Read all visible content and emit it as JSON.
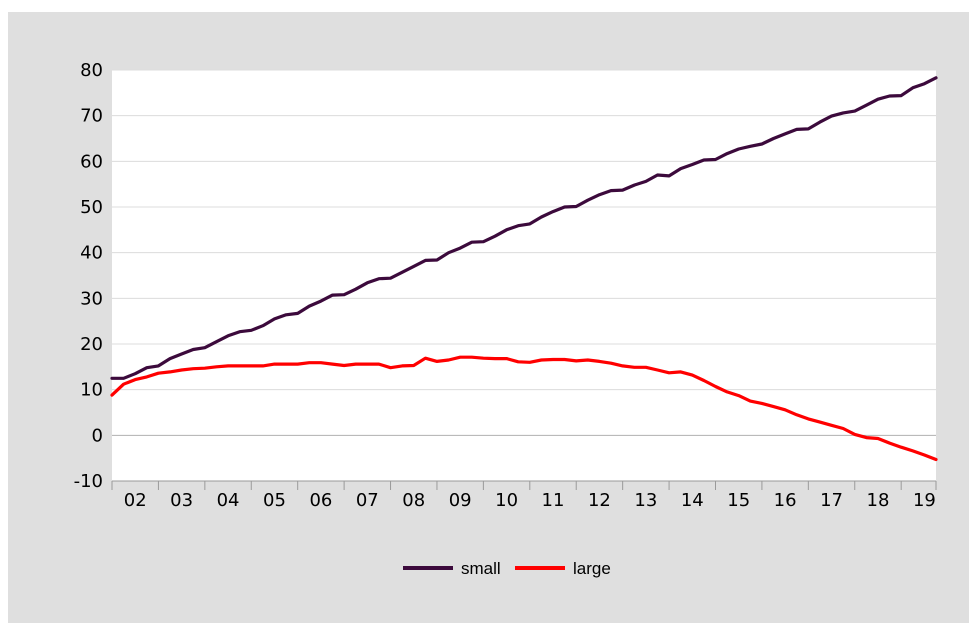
{
  "chart_data": {
    "type": "line",
    "title": "",
    "xlabel": "",
    "ylabel": "",
    "ylim": [
      -10,
      80
    ],
    "yticks": [
      -10,
      0,
      10,
      20,
      30,
      40,
      50,
      60,
      70,
      80
    ],
    "xlim": [
      2002,
      2019.75
    ],
    "xtick_labels": [
      "02",
      "03",
      "04",
      "05",
      "06",
      "07",
      "08",
      "09",
      "10",
      "11",
      "12",
      "13",
      "14",
      "15",
      "16",
      "17",
      "18",
      "19"
    ],
    "grid": true,
    "legend_position": "bottom-center",
    "x": [
      2002.0,
      2002.25,
      2002.5,
      2002.75,
      2003.0,
      2003.25,
      2003.5,
      2003.75,
      2004.0,
      2004.25,
      2004.5,
      2004.75,
      2005.0,
      2005.25,
      2005.5,
      2005.75,
      2006.0,
      2006.25,
      2006.5,
      2006.75,
      2007.0,
      2007.25,
      2007.5,
      2007.75,
      2008.0,
      2008.25,
      2008.5,
      2008.75,
      2009.0,
      2009.25,
      2009.5,
      2009.75,
      2010.0,
      2010.25,
      2010.5,
      2010.75,
      2011.0,
      2011.25,
      2011.5,
      2011.75,
      2012.0,
      2012.25,
      2012.5,
      2012.75,
      2013.0,
      2013.25,
      2013.5,
      2013.75,
      2014.0,
      2014.25,
      2014.5,
      2014.75,
      2015.0,
      2015.25,
      2015.5,
      2015.75,
      2016.0,
      2016.25,
      2016.5,
      2016.75,
      2017.0,
      2017.25,
      2017.5,
      2017.75,
      2018.0,
      2018.25,
      2018.5,
      2018.75,
      2019.0,
      2019.25,
      2019.5,
      2019.75
    ],
    "series": [
      {
        "name": "small",
        "color": "#3c0a3c",
        "values": [
          12.5,
          12.5,
          13.5,
          14.8,
          15.2,
          16.8,
          17.8,
          18.8,
          19.2,
          20.5,
          21.8,
          22.7,
          23.0,
          24.0,
          25.5,
          26.4,
          26.7,
          28.3,
          29.4,
          30.7,
          30.8,
          32.0,
          33.4,
          34.3,
          34.4,
          35.7,
          37.0,
          38.3,
          38.4,
          40.0,
          41.0,
          42.3,
          42.4,
          43.6,
          45.0,
          45.9,
          46.3,
          47.8,
          49.0,
          50.0,
          50.1,
          51.5,
          52.7,
          53.6,
          53.7,
          54.8,
          55.6,
          57.0,
          56.8,
          58.4,
          59.3,
          60.3,
          60.4,
          61.7,
          62.7,
          63.3,
          63.8,
          65.0,
          66.0,
          67.0,
          67.1,
          68.6,
          69.9,
          70.6,
          71.0,
          72.3,
          73.6,
          74.3,
          74.4,
          76.1,
          77.0,
          78.3
        ]
      },
      {
        "name": "large",
        "color": "#ff0000",
        "values": [
          8.8,
          11.2,
          12.2,
          12.8,
          13.6,
          13.9,
          14.3,
          14.6,
          14.7,
          15.0,
          15.2,
          15.2,
          15.2,
          15.2,
          15.6,
          15.6,
          15.6,
          15.9,
          15.9,
          15.6,
          15.3,
          15.6,
          15.6,
          15.6,
          14.8,
          15.2,
          15.3,
          16.9,
          16.2,
          16.5,
          17.1,
          17.1,
          16.9,
          16.8,
          16.8,
          16.1,
          16.0,
          16.5,
          16.6,
          16.6,
          16.3,
          16.5,
          16.2,
          15.8,
          15.2,
          14.9,
          14.9,
          14.3,
          13.7,
          13.9,
          13.2,
          12.0,
          10.7,
          9.5,
          8.7,
          7.5,
          7.0,
          6.3,
          5.6,
          4.5,
          3.6,
          2.9,
          2.2,
          1.5,
          0.2,
          -0.5,
          -0.7,
          -1.7,
          -2.6,
          -3.4,
          -4.3,
          -5.3
        ]
      }
    ]
  }
}
